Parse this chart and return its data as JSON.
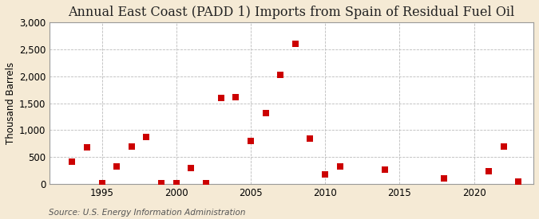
{
  "title": "Annual East Coast (PADD 1) Imports from Spain of Residual Fuel Oil",
  "ylabel": "Thousand Barrels",
  "source": "Source: U.S. Energy Information Administration",
  "background_color": "#f5ead5",
  "plot_background_color": "#ffffff",
  "marker_color": "#cc0000",
  "marker_size": 28,
  "marker_shape": "s",
  "grid_color": "#bbbbbb",
  "grid_style": "--",
  "ylim": [
    0,
    3000
  ],
  "yticks": [
    0,
    500,
    1000,
    1500,
    2000,
    2500,
    3000
  ],
  "xlim": [
    1991.5,
    2024
  ],
  "xticks": [
    1995,
    2000,
    2005,
    2010,
    2015,
    2020
  ],
  "data": {
    "years": [
      1993,
      1994,
      1995,
      1996,
      1997,
      1998,
      1999,
      2000,
      2001,
      2002,
      2003,
      2004,
      2005,
      2006,
      2007,
      2008,
      2009,
      2010,
      2011,
      2014,
      2018,
      2021,
      2022,
      2023
    ],
    "values": [
      420,
      680,
      10,
      320,
      700,
      870,
      10,
      20,
      290,
      10,
      1600,
      1620,
      800,
      1310,
      2030,
      2600,
      850,
      170,
      330,
      260,
      110,
      240,
      690,
      50
    ]
  },
  "title_fontsize": 11.5,
  "axis_fontsize": 8.5,
  "tick_fontsize": 8.5,
  "source_fontsize": 7.5
}
